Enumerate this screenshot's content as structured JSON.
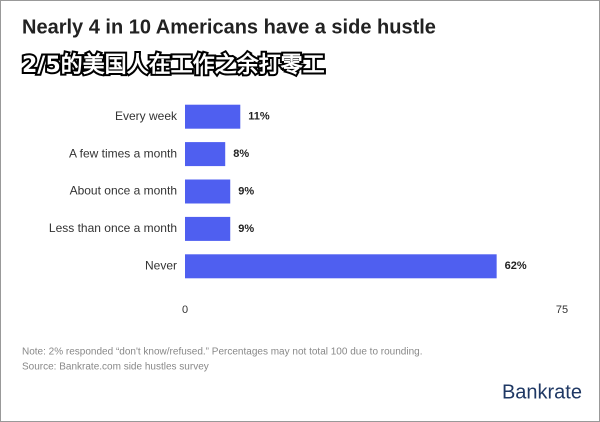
{
  "chart_data": {
    "type": "hbar",
    "title": "Nearly 4 in 10 Americans have a side hustle",
    "annotation": "2/5的美国人在工作之余打零工",
    "categories": [
      "Every week",
      "A few times a month",
      "About once a month",
      "Less than once a month",
      "Never"
    ],
    "values": [
      11,
      8,
      9,
      9,
      62
    ],
    "value_labels": [
      "11%",
      "8%",
      "9%",
      "9%",
      "62%"
    ],
    "color": "#4f5ff0",
    "xlim": [
      0,
      75
    ],
    "xticks": [
      0,
      75
    ],
    "note": "Note: 2% responded “don't know/refused.” Percentages may not total 100 due to rounding.",
    "source": "Source: Bankrate.com side hustles survey",
    "brand": "Bankrate"
  }
}
